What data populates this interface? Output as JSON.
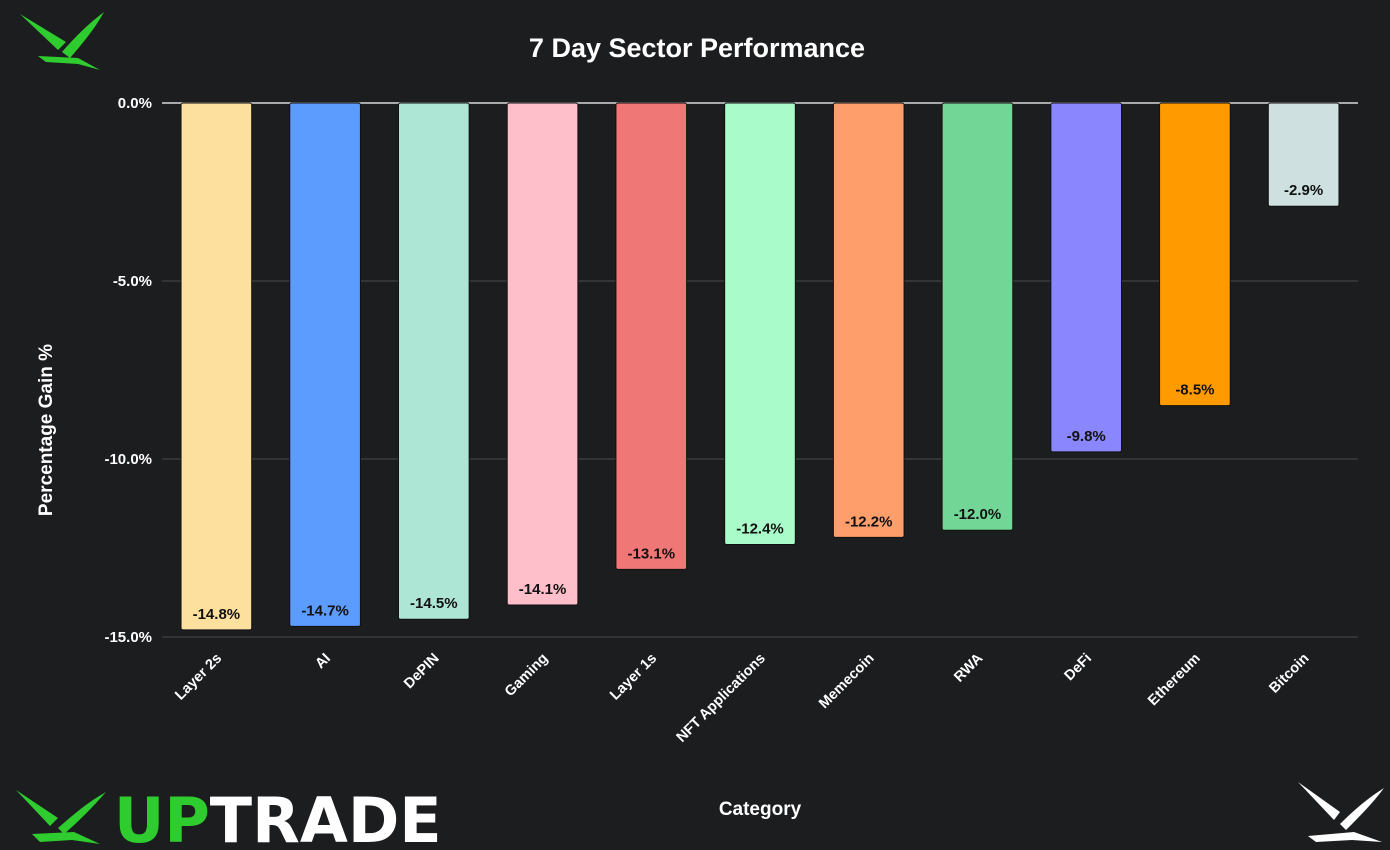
{
  "brand": {
    "wordmark_up": "UP",
    "wordmark_trade": "TRADE",
    "green": "#2ecc2e",
    "logo_icon": "bird-logo-icon"
  },
  "chart_data": {
    "type": "bar",
    "title": "7 Day Sector Performance",
    "xlabel": "Category",
    "ylabel": "Percentage Gain %",
    "ylim": [
      -15,
      0
    ],
    "yticks": [
      0,
      -5,
      -10,
      -15
    ],
    "ytick_labels": [
      "0.0%",
      "-5.0%",
      "-10.0%",
      "-15.0%"
    ],
    "grid": true,
    "categories": [
      "Layer 2s",
      "AI",
      "DePIN",
      "Gaming",
      "Layer 1s",
      "NFT Applications",
      "Memecoin",
      "RWA",
      "DeFi",
      "Ethereum",
      "Bitcoin"
    ],
    "values": [
      -14.8,
      -14.7,
      -14.5,
      -14.1,
      -13.1,
      -12.4,
      -12.2,
      -12.0,
      -9.8,
      -8.5,
      -2.9
    ],
    "data_labels": [
      "-14.8%",
      "-14.7%",
      "-14.5%",
      "-14.1%",
      "-13.1%",
      "-12.4%",
      "-12.2%",
      "-12.0%",
      "-9.8%",
      "-8.5%",
      "-2.9%"
    ],
    "colors": [
      "#fddf9e",
      "#5c9cff",
      "#ade6d5",
      "#ffbfca",
      "#ef7877",
      "#a9fcc9",
      "#fe9e6a",
      "#72d796",
      "#8a87fe",
      "#ff9b00",
      "#cfe0e0"
    ]
  }
}
